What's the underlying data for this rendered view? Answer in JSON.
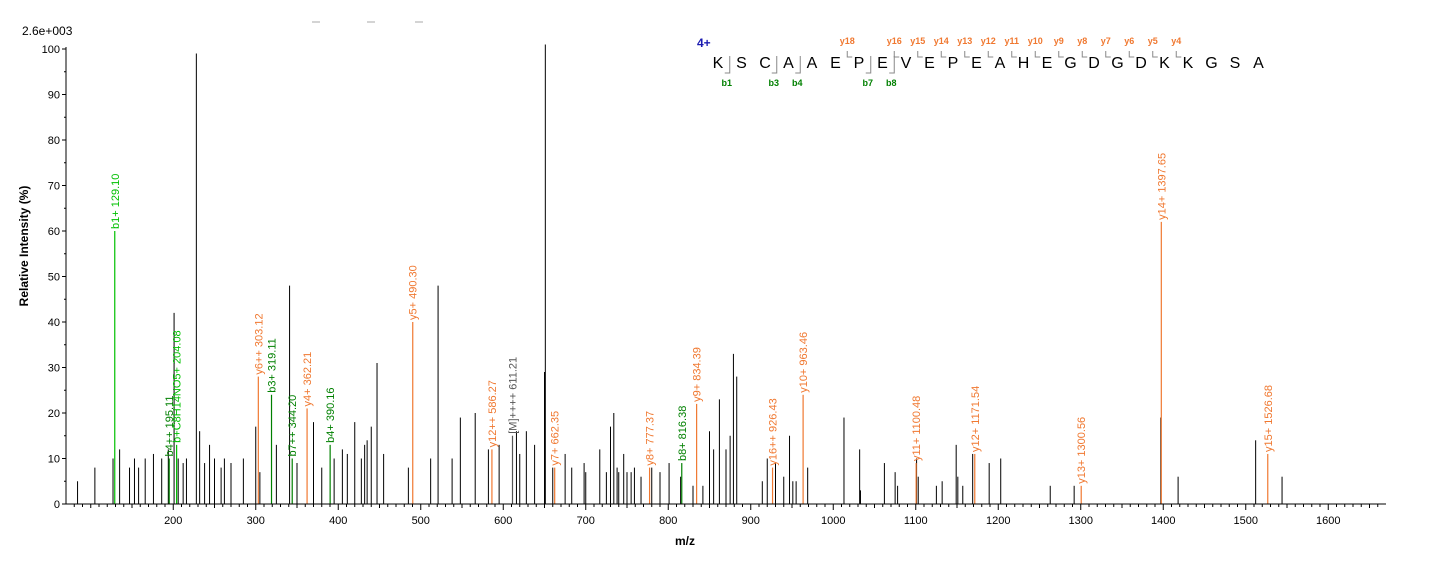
{
  "chart_data": {
    "type": "bar",
    "scale_label": "2.6e+003",
    "xlabel": "m/z",
    "ylabel": "Relative   Intensity (%)",
    "xlim": [
      70,
      1670
    ],
    "ylim": [
      0,
      100
    ],
    "x_ticks": [
      200,
      300,
      400,
      500,
      600,
      700,
      800,
      900,
      1000,
      1100,
      1200,
      1300,
      1400,
      1500,
      1600
    ],
    "y_ticks": [
      0,
      10,
      20,
      30,
      40,
      50,
      60,
      70,
      80,
      90,
      100
    ],
    "colors": {
      "b": "#008000",
      "b_light": "#00c000",
      "y": "#f07830",
      "other": "#555555",
      "unlabeled": "#000000",
      "charge": "#1a1ab0"
    },
    "peaks": [
      [
        84,
        5
      ],
      [
        105,
        8
      ],
      [
        127,
        10
      ],
      [
        135,
        12
      ],
      [
        147,
        8
      ],
      [
        153,
        10
      ],
      [
        158,
        8
      ],
      [
        166,
        10
      ],
      [
        176,
        11
      ],
      [
        186,
        10
      ],
      [
        194,
        12
      ],
      [
        201,
        42
      ],
      [
        206,
        10
      ],
      [
        212,
        9
      ],
      [
        216,
        10
      ],
      [
        228,
        99
      ],
      [
        232,
        16
      ],
      [
        238,
        9
      ],
      [
        244,
        13
      ],
      [
        250,
        10
      ],
      [
        258,
        8
      ],
      [
        262,
        10
      ],
      [
        270,
        9
      ],
      [
        285,
        10
      ],
      [
        300,
        17
      ],
      [
        305,
        7
      ],
      [
        325,
        13
      ],
      [
        341,
        48
      ],
      [
        350,
        9
      ],
      [
        370,
        18
      ],
      [
        380,
        8
      ],
      [
        395,
        10
      ],
      [
        405,
        12
      ],
      [
        411,
        11
      ],
      [
        420,
        18
      ],
      [
        428,
        10
      ],
      [
        432,
        13
      ],
      [
        435,
        14
      ],
      [
        440,
        17
      ],
      [
        447,
        31
      ],
      [
        455,
        11
      ],
      [
        485,
        8
      ],
      [
        512,
        10
      ],
      [
        521,
        48
      ],
      [
        538,
        10
      ],
      [
        548,
        19
      ],
      [
        566,
        20
      ],
      [
        582,
        12
      ],
      [
        595,
        13
      ],
      [
        616,
        16
      ],
      [
        620,
        11
      ],
      [
        628,
        16
      ],
      [
        638,
        13
      ],
      [
        650,
        29
      ],
      [
        651,
        101
      ],
      [
        660,
        8
      ],
      [
        675,
        11
      ],
      [
        683,
        8
      ],
      [
        698,
        9
      ],
      [
        700,
        7
      ],
      [
        717,
        12
      ],
      [
        725,
        7
      ],
      [
        730,
        17
      ],
      [
        734,
        20
      ],
      [
        738,
        8
      ],
      [
        740,
        7
      ],
      [
        746,
        11
      ],
      [
        750,
        7
      ],
      [
        755,
        7
      ],
      [
        759,
        8
      ],
      [
        767,
        6
      ],
      [
        780,
        8
      ],
      [
        790,
        7
      ],
      [
        801,
        9
      ],
      [
        815,
        6
      ],
      [
        830,
        4
      ],
      [
        842,
        4
      ],
      [
        850,
        16
      ],
      [
        855,
        12
      ],
      [
        862,
        23
      ],
      [
        870,
        12
      ],
      [
        875,
        15
      ],
      [
        879,
        33
      ],
      [
        883,
        28
      ],
      [
        914,
        5
      ],
      [
        920,
        10
      ],
      [
        930,
        9
      ],
      [
        940,
        6
      ],
      [
        947,
        15
      ],
      [
        951,
        5
      ],
      [
        955,
        5
      ],
      [
        969,
        8
      ],
      [
        1013,
        19
      ],
      [
        1032,
        12
      ],
      [
        1033,
        3
      ],
      [
        1062,
        9
      ],
      [
        1075,
        7
      ],
      [
        1078,
        4
      ],
      [
        1101,
        10
      ],
      [
        1103,
        6
      ],
      [
        1125,
        4
      ],
      [
        1132,
        5
      ],
      [
        1149,
        13
      ],
      [
        1151,
        6
      ],
      [
        1157,
        4
      ],
      [
        1169,
        11
      ],
      [
        1189,
        9
      ],
      [
        1203,
        10
      ],
      [
        1263,
        4
      ],
      [
        1292,
        4
      ],
      [
        1397,
        19
      ],
      [
        1418,
        6
      ],
      [
        1512,
        14
      ],
      [
        1544,
        6
      ]
    ],
    "annotations": [
      {
        "mz": 129.1,
        "intensity": 60,
        "label": "b1+ 129.10",
        "kind": "b_light"
      },
      {
        "mz": 195.11,
        "intensity": 10,
        "label": "b4++ 195.11",
        "kind": "b"
      },
      {
        "mz": 204.08,
        "intensity": 13,
        "label": "b+C8H14NO5+ 204.08",
        "kind": "b_light"
      },
      {
        "mz": 303.12,
        "intensity": 28,
        "label": "y6++ 303.12",
        "kind": "y"
      },
      {
        "mz": 319.11,
        "intensity": 24,
        "label": "b3+ 319.11",
        "kind": "b"
      },
      {
        "mz": 344.2,
        "intensity": 10,
        "label": "b7++ 344.20",
        "kind": "b"
      },
      {
        "mz": 362.21,
        "intensity": 21,
        "label": "y4+ 362.21",
        "kind": "y"
      },
      {
        "mz": 390.16,
        "intensity": 13,
        "label": "b4+ 390.16",
        "kind": "b"
      },
      {
        "mz": 490.3,
        "intensity": 40,
        "label": "y5+ 490.30",
        "kind": "y"
      },
      {
        "mz": 586.27,
        "intensity": 12,
        "label": "y12++ 586.27",
        "kind": "y"
      },
      {
        "mz": 611.21,
        "intensity": 15,
        "label": "[M]++++ 611.21",
        "kind": "other"
      },
      {
        "mz": 662.35,
        "intensity": 8,
        "label": "y7+ 662.35",
        "kind": "y"
      },
      {
        "mz": 777.37,
        "intensity": 8,
        "label": "y8+ 777.37",
        "kind": "y"
      },
      {
        "mz": 816.38,
        "intensity": 9,
        "label": "b8+ 816.38",
        "kind": "b"
      },
      {
        "mz": 834.39,
        "intensity": 22,
        "label": "y9+ 834.39",
        "kind": "y"
      },
      {
        "mz": 926.43,
        "intensity": 8,
        "label": "y16++ 926.43",
        "kind": "y"
      },
      {
        "mz": 963.46,
        "intensity": 24,
        "label": "y10+ 963.46",
        "kind": "y"
      },
      {
        "mz": 1100.48,
        "intensity": 9,
        "label": "y11+ 1100.48",
        "kind": "y"
      },
      {
        "mz": 1171.54,
        "intensity": 11,
        "label": "y12+ 1171.54",
        "kind": "y"
      },
      {
        "mz": 1300.56,
        "intensity": 4,
        "label": "y13+ 1300.56",
        "kind": "y"
      },
      {
        "mz": 1397.65,
        "intensity": 62,
        "label": "y14+ 1397.65",
        "kind": "y"
      },
      {
        "mz": 1526.68,
        "intensity": 11,
        "label": "y15+ 1526.68",
        "kind": "y"
      }
    ],
    "sequence": {
      "charge": "4+",
      "residues": [
        "K",
        "S",
        "C",
        "A",
        "A",
        "E",
        "P",
        "E",
        "V",
        "E",
        "P",
        "E",
        "A",
        "H",
        "E",
        "G",
        "D",
        "G",
        "D",
        "K",
        "K",
        "G",
        "S",
        "A"
      ],
      "y_ions": [
        {
          "after": 6,
          "label": "y18"
        },
        {
          "after": 8,
          "label": "y16"
        },
        {
          "after": 9,
          "label": "y15"
        },
        {
          "after": 10,
          "label": "y14"
        },
        {
          "after": 11,
          "label": "y13"
        },
        {
          "after": 12,
          "label": "y12"
        },
        {
          "after": 13,
          "label": "y11"
        },
        {
          "after": 14,
          "label": "y10"
        },
        {
          "after": 15,
          "label": "y9"
        },
        {
          "after": 16,
          "label": "y8"
        },
        {
          "after": 17,
          "label": "y7"
        },
        {
          "after": 18,
          "label": "y6"
        },
        {
          "after": 19,
          "label": "y5"
        },
        {
          "after": 20,
          "label": "y4"
        }
      ],
      "b_ions": [
        {
          "after": 1,
          "label": "b1"
        },
        {
          "after": 3,
          "label": "b3"
        },
        {
          "after": 4,
          "label": "b4"
        },
        {
          "after": 7,
          "label": "b7"
        },
        {
          "after": 8,
          "label": "b8"
        }
      ]
    }
  }
}
